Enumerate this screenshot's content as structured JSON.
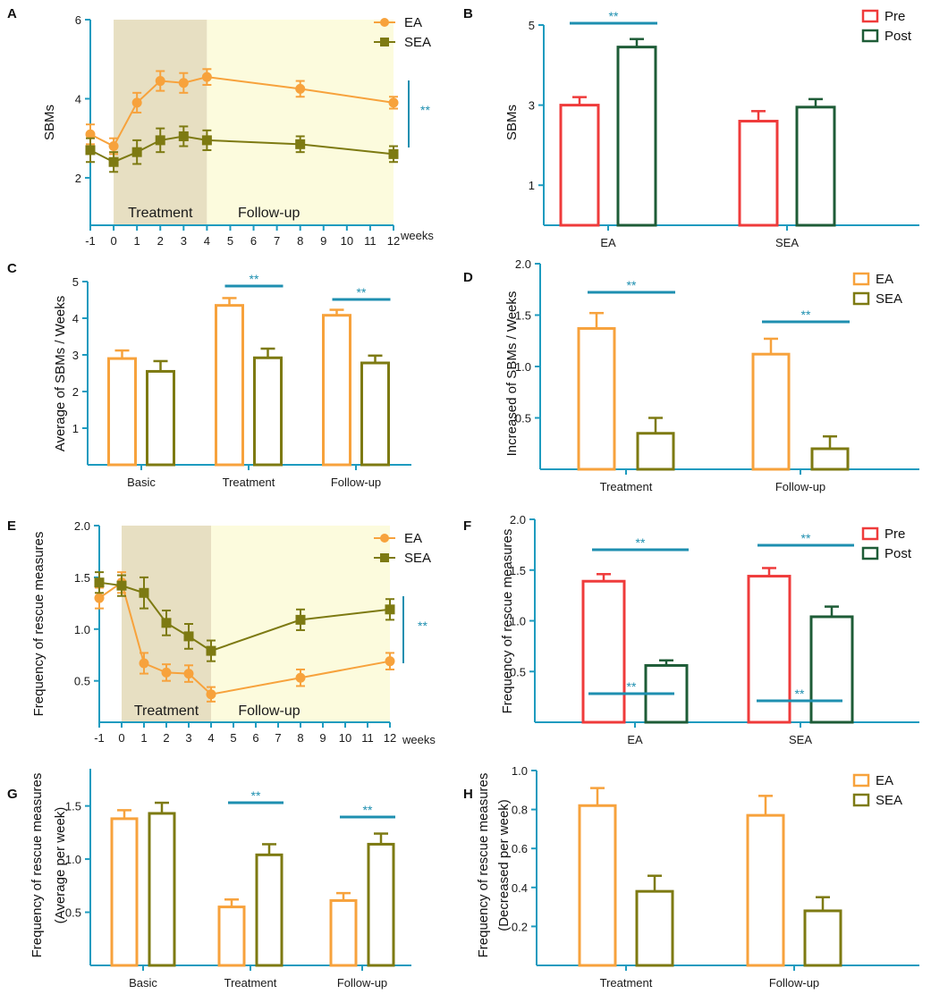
{
  "colors": {
    "axis": "#1e9bbf",
    "ea": "#f7a23c",
    "sea": "#7d7a12",
    "pre": "#ef3b3b",
    "post": "#1e5c37",
    "sig": "#1e8fb0",
    "treatment_bg": "#e7dfc2",
    "followup_bg": "#fcfbdd"
  },
  "chart_data": [
    {
      "panel": "A",
      "type": "line",
      "xlabel": "weeks",
      "ylabel": "SBMs",
      "x": [
        -1,
        0,
        1,
        2,
        3,
        4,
        8,
        12
      ],
      "xticks": [
        "-1",
        "0",
        "1",
        "2",
        "3",
        "4",
        "5",
        "6",
        "7",
        "8",
        "9",
        "10",
        "11",
        "12"
      ],
      "xlim": [
        -1,
        12
      ],
      "ylim": [
        0.8,
        6
      ],
      "yticks": [
        "2",
        "4",
        "6"
      ],
      "regions": [
        {
          "label": "Treatment",
          "from": 0,
          "to": 4
        },
        {
          "label": "Follow-up",
          "from": 4,
          "to": 12
        }
      ],
      "series": [
        {
          "name": "EA",
          "values": [
            3.1,
            2.8,
            3.9,
            4.45,
            4.4,
            4.55,
            4.25,
            3.9
          ],
          "errors": [
            0.25,
            0.2,
            0.25,
            0.25,
            0.25,
            0.2,
            0.2,
            0.15
          ]
        },
        {
          "name": "SEA",
          "values": [
            2.7,
            2.4,
            2.65,
            2.95,
            3.05,
            2.95,
            2.85,
            2.6
          ],
          "errors": [
            0.3,
            0.25,
            0.3,
            0.3,
            0.25,
            0.25,
            0.2,
            0.2
          ]
        }
      ],
      "significance": "**"
    },
    {
      "panel": "B",
      "type": "bar",
      "ylabel": "SBMs",
      "categories": [
        "EA",
        "SEA"
      ],
      "ylim": [
        0,
        5
      ],
      "yticks": [
        "1",
        "3",
        "5"
      ],
      "series": [
        {
          "name": "Pre",
          "values": [
            3.0,
            2.6
          ],
          "errors": [
            0.2,
            0.25
          ]
        },
        {
          "name": "Post",
          "values": [
            4.45,
            2.95
          ],
          "errors": [
            0.2,
            0.2
          ]
        }
      ],
      "significance": [
        "**",
        ""
      ]
    },
    {
      "panel": "C",
      "type": "bar",
      "ylabel": "Average of SBMs / Weeks",
      "categories": [
        "Basic",
        "Treatment",
        "Follow-up"
      ],
      "ylim": [
        0,
        5
      ],
      "yticks": [
        "1",
        "2",
        "3",
        "4",
        "5"
      ],
      "series": [
        {
          "name": "EA",
          "values": [
            2.9,
            4.35,
            4.08
          ],
          "errors": [
            0.22,
            0.2,
            0.15
          ]
        },
        {
          "name": "SEA",
          "values": [
            2.55,
            2.92,
            2.78
          ],
          "errors": [
            0.28,
            0.25,
            0.2
          ]
        }
      ],
      "significance": [
        "",
        "**",
        "**"
      ]
    },
    {
      "panel": "D",
      "type": "bar",
      "ylabel": "Increased of SBMs / Weeks",
      "categories": [
        "Treatment",
        "Follow-up"
      ],
      "ylim": [
        0,
        2.0
      ],
      "yticks": [
        "0.5",
        "1.0",
        "1.5",
        "2.0"
      ],
      "series": [
        {
          "name": "EA",
          "values": [
            1.37,
            1.12
          ],
          "errors": [
            0.15,
            0.15
          ]
        },
        {
          "name": "SEA",
          "values": [
            0.35,
            0.2
          ],
          "errors": [
            0.15,
            0.12
          ]
        }
      ],
      "significance": [
        "**",
        "**"
      ]
    },
    {
      "panel": "E",
      "type": "line",
      "xlabel": "weeks",
      "ylabel": "Frequency of rescue measures",
      "x": [
        -1,
        0,
        1,
        2,
        3,
        4,
        8,
        12
      ],
      "xticks": [
        "-1",
        "0",
        "1",
        "2",
        "3",
        "4",
        "5",
        "6",
        "7",
        "8",
        "9",
        "10",
        "11",
        "12"
      ],
      "xlim": [
        -1,
        12
      ],
      "ylim": [
        0.1,
        2.0
      ],
      "yticks": [
        "0.5",
        "1.0",
        "1.5",
        "2.0"
      ],
      "regions": [
        {
          "label": "Treatment",
          "from": 0,
          "to": 4
        },
        {
          "label": "Follow-up",
          "from": 4,
          "to": 12
        }
      ],
      "series": [
        {
          "name": "EA",
          "values": [
            1.3,
            1.45,
            0.67,
            0.58,
            0.57,
            0.37,
            0.53,
            0.69
          ],
          "errors": [
            0.1,
            0.1,
            0.1,
            0.08,
            0.08,
            0.07,
            0.08,
            0.08
          ]
        },
        {
          "name": "SEA",
          "values": [
            1.45,
            1.42,
            1.35,
            1.06,
            0.93,
            0.79,
            1.09,
            1.19
          ],
          "errors": [
            0.1,
            0.1,
            0.15,
            0.12,
            0.12,
            0.1,
            0.1,
            0.1
          ]
        }
      ],
      "significance": "**"
    },
    {
      "panel": "F",
      "type": "bar",
      "ylabel": "Frequency of rescue measures",
      "categories": [
        "EA",
        "SEA"
      ],
      "ylim": [
        0,
        2.0
      ],
      "yticks": [
        "0.5",
        "1.0",
        "1.5",
        "2.0"
      ],
      "series": [
        {
          "name": "Pre",
          "values": [
            1.39,
            1.44
          ],
          "errors": [
            0.07,
            0.08
          ]
        },
        {
          "name": "Post",
          "values": [
            0.56,
            1.04
          ],
          "errors": [
            0.05,
            0.1
          ]
        }
      ],
      "significance": [
        "**",
        "**"
      ]
    },
    {
      "panel": "G",
      "type": "bar",
      "ylabel": "Frequency of rescue measures",
      "ylabel2": "(Average per week)",
      "categories": [
        "Basic",
        "Treatment",
        "Follow-up"
      ],
      "ylim": [
        0,
        1.85
      ],
      "yticks": [
        "0.5",
        "1.0",
        "1.5"
      ],
      "series": [
        {
          "name": "EA",
          "values": [
            1.38,
            0.55,
            0.61
          ],
          "errors": [
            0.08,
            0.07,
            0.07
          ]
        },
        {
          "name": "SEA",
          "values": [
            1.43,
            1.04,
            1.14
          ],
          "errors": [
            0.1,
            0.1,
            0.1
          ]
        }
      ],
      "significance": [
        "",
        "**",
        "**"
      ]
    },
    {
      "panel": "H",
      "type": "bar",
      "ylabel": "Frequency of  rescue measures",
      "ylabel2": "(Decreased per week)",
      "categories": [
        "Treatment",
        "Follow-up"
      ],
      "ylim": [
        0,
        1.0
      ],
      "yticks": [
        "0.2",
        "0.4",
        "0.6",
        "0.8",
        "1.0"
      ],
      "series": [
        {
          "name": "EA",
          "values": [
            0.82,
            0.77
          ],
          "errors": [
            0.09,
            0.1
          ]
        },
        {
          "name": "SEA",
          "values": [
            0.38,
            0.28
          ],
          "errors": [
            0.08,
            0.07
          ]
        }
      ],
      "significance": [
        "**",
        "**"
      ]
    }
  ]
}
